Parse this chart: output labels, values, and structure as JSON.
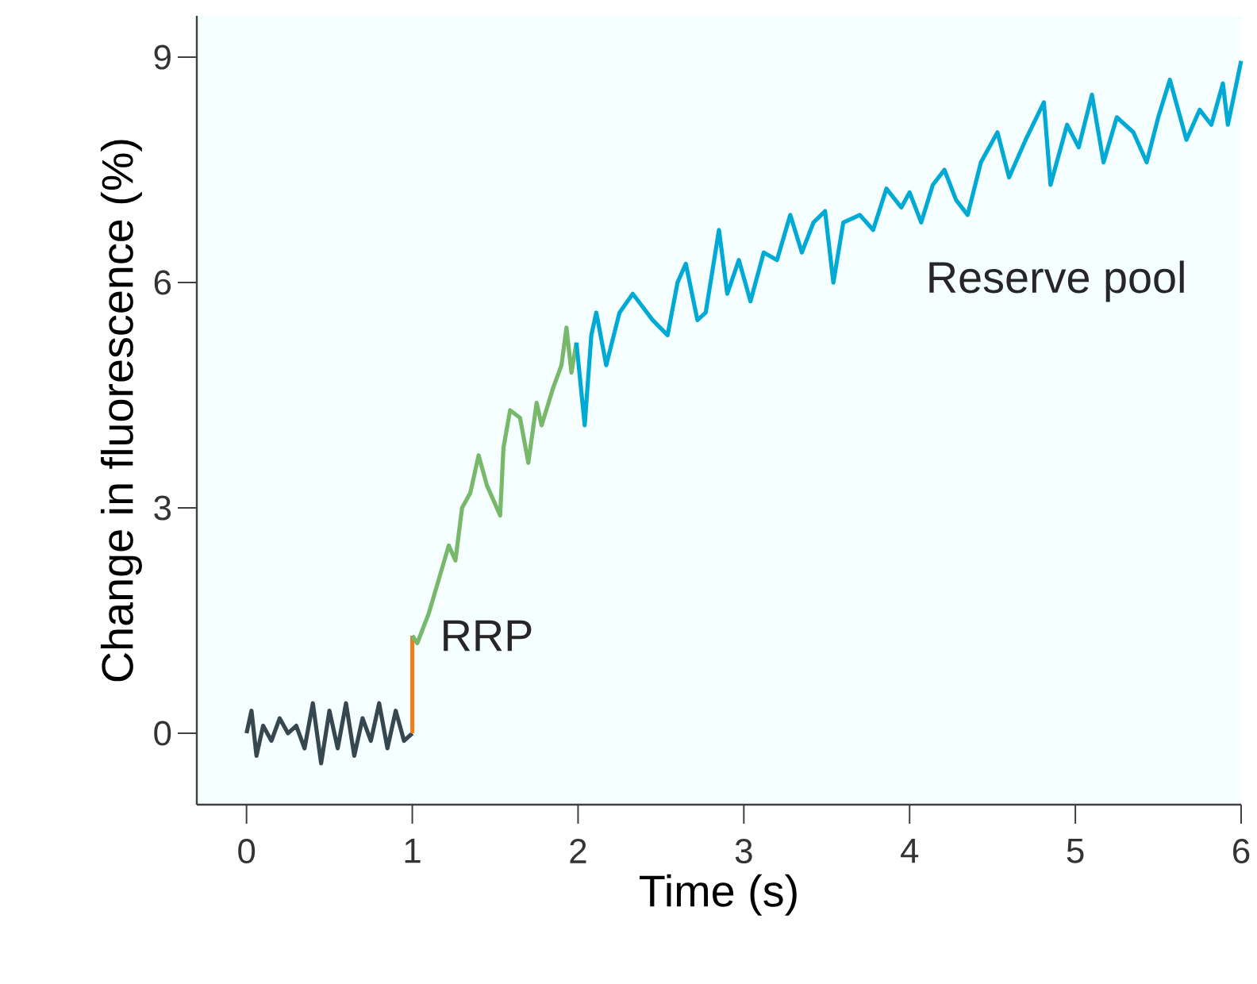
{
  "chart_data": {
    "type": "line",
    "xlabel": "Time (s)",
    "ylabel": "Change in fluorescence (%)",
    "xlim": [
      -0.3,
      6
    ],
    "ylim": [
      -0.95,
      9.55
    ],
    "xticks": [
      0,
      1,
      2,
      3,
      4,
      5,
      6
    ],
    "yticks": [
      0,
      3,
      6,
      9
    ],
    "series": [
      {
        "color": "#37474f",
        "x": [
          0,
          0.03,
          0.06,
          0.1,
          0.15,
          0.2,
          0.25,
          0.3,
          0.35,
          0.4,
          0.45,
          0.5,
          0.55,
          0.6,
          0.65,
          0.7,
          0.75,
          0.8,
          0.85,
          0.9,
          0.95,
          1.0
        ],
        "values": [
          0.0,
          0.3,
          -0.3,
          0.1,
          -0.1,
          0.2,
          0.0,
          0.1,
          -0.2,
          0.4,
          -0.4,
          0.3,
          -0.2,
          0.4,
          -0.3,
          0.2,
          -0.1,
          0.4,
          -0.2,
          0.3,
          -0.1,
          0.0
        ]
      },
      {
        "name": "RRP",
        "color": "#f07d1e",
        "x": [
          1.0,
          1.0
        ],
        "values": [
          0.0,
          1.3
        ]
      },
      {
        "color": "#78b86a",
        "x": [
          1.0,
          1.03,
          1.1,
          1.22,
          1.26,
          1.3,
          1.35,
          1.4,
          1.45,
          1.53,
          1.55,
          1.59,
          1.65,
          1.7,
          1.75,
          1.78,
          1.85,
          1.9,
          1.93,
          1.96,
          1.99
        ],
        "values": [
          1.3,
          1.2,
          1.6,
          2.5,
          2.3,
          3.0,
          3.2,
          3.7,
          3.3,
          2.9,
          3.8,
          4.3,
          4.2,
          3.6,
          4.4,
          4.1,
          4.6,
          4.9,
          5.4,
          4.8,
          5.2
        ]
      },
      {
        "name": "Reserve pool",
        "color": "#00aad4",
        "x": [
          1.99,
          2.04,
          2.08,
          2.11,
          2.17,
          2.25,
          2.33,
          2.45,
          2.54,
          2.6,
          2.65,
          2.72,
          2.77,
          2.85,
          2.9,
          2.97,
          3.04,
          3.12,
          3.2,
          3.28,
          3.35,
          3.42,
          3.49,
          3.54,
          3.6,
          3.7,
          3.78,
          3.86,
          3.95,
          4.0,
          4.07,
          4.14,
          4.21,
          4.28,
          4.35,
          4.43,
          4.53,
          4.6,
          4.7,
          4.81,
          4.85,
          4.95,
          5.02,
          5.1,
          5.17,
          5.25,
          5.35,
          5.43,
          5.5,
          5.57,
          5.67,
          5.75,
          5.82,
          5.89,
          5.92,
          6.0
        ],
        "values": [
          5.2,
          4.1,
          5.3,
          5.6,
          4.9,
          5.6,
          5.85,
          5.5,
          5.3,
          6.0,
          6.25,
          5.5,
          5.6,
          6.7,
          5.85,
          6.3,
          5.75,
          6.4,
          6.3,
          6.9,
          6.4,
          6.8,
          6.95,
          6.0,
          6.8,
          6.9,
          6.7,
          7.25,
          7.0,
          7.2,
          6.8,
          7.3,
          7.5,
          7.1,
          6.9,
          7.6,
          8.0,
          7.4,
          7.9,
          8.4,
          7.3,
          8.1,
          7.8,
          8.5,
          7.6,
          8.2,
          8.0,
          7.6,
          8.2,
          8.7,
          7.9,
          8.3,
          8.1,
          8.65,
          8.1,
          8.95
        ]
      }
    ]
  }
}
